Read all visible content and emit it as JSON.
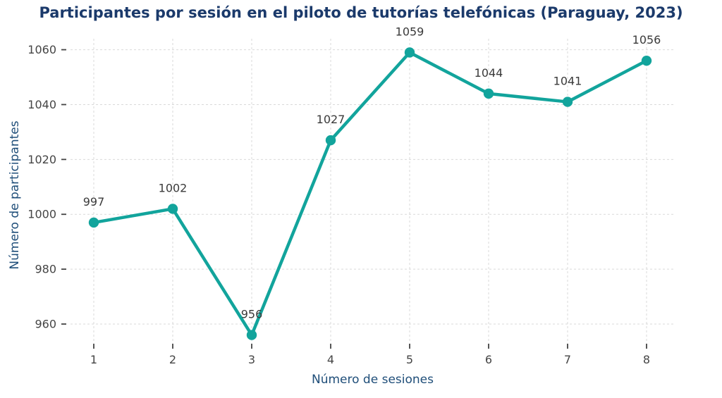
{
  "chart_data": {
    "type": "line",
    "title": "Participantes por sesión en el piloto de tutorías telefónicas (Paraguay, 2023)",
    "xlabel": "Número de sesiones",
    "ylabel": "Número de participantes",
    "x": [
      1,
      2,
      3,
      4,
      5,
      6,
      7,
      8
    ],
    "values": [
      997,
      1002,
      956,
      1027,
      1059,
      1044,
      1041,
      1056
    ],
    "data_labels": [
      "997",
      "1002",
      "956",
      "1027",
      "1059",
      "1044",
      "1041",
      "1056"
    ],
    "yticks": [
      960,
      980,
      1000,
      1020,
      1040,
      1060
    ],
    "ylim": [
      950.5,
      1064
    ],
    "grid": true,
    "legend": "none",
    "marker": "circle"
  },
  "colors": {
    "title": "#1b3a6b",
    "axis_label": "#1f4e79",
    "tick_label": "#454545",
    "tick_mark": "#444444",
    "data_label": "#3a3a3a",
    "line": "#12a49c",
    "grid": "#d9d9d9",
    "background": "#ffffff"
  }
}
